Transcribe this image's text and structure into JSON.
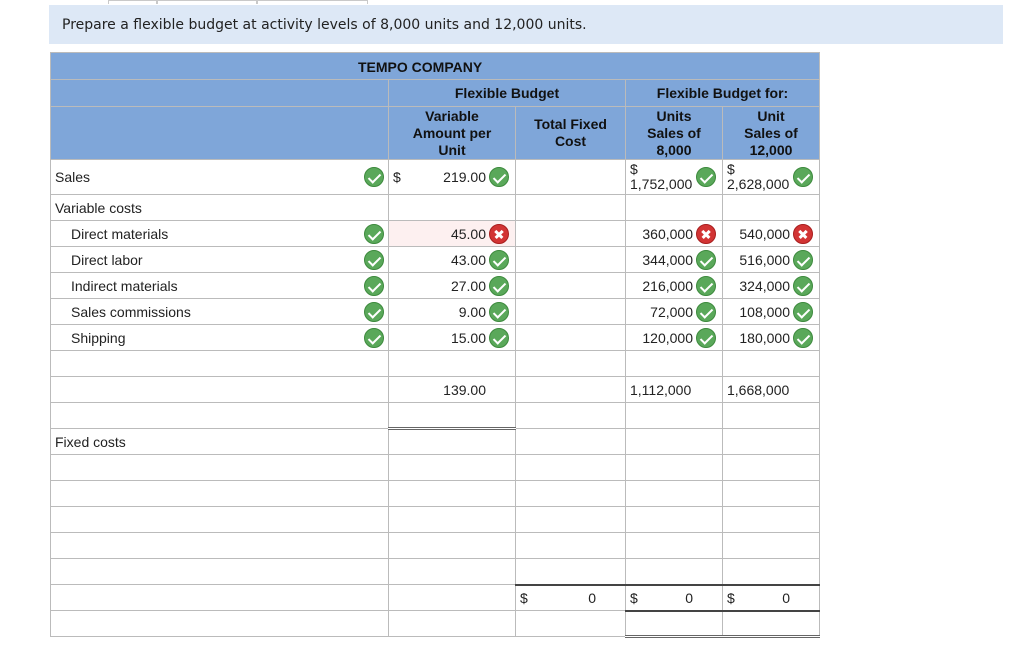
{
  "instruction": "Prepare a flexible budget at activity levels of 8,000 units and 12,000 units.",
  "company": "TEMPO COMPANY",
  "headers": {
    "flexible_budget": "Flexible Budget",
    "flexible_budget_for": "Flexible Budget for:",
    "variable_amount": [
      "Variable",
      "Amount per",
      "Unit"
    ],
    "total_fixed": [
      "Total Fixed",
      "Cost"
    ],
    "units8000": [
      "Units",
      "Sales of",
      "8,000"
    ],
    "units12000": [
      "Unit",
      "Sales of",
      "12,000"
    ]
  },
  "currency": "$",
  "sales": {
    "label": "Sales",
    "per_unit": "219.00",
    "u8000": "1,752,000",
    "u12000": "2,628,000"
  },
  "variable_costs_label": "Variable costs",
  "variable_rows": [
    {
      "label": "Direct materials",
      "per_unit": "45.00",
      "per_unit_status": "incorrect",
      "u8000": "360,000",
      "u8000_status": "incorrect",
      "u12000": "540,000",
      "u12000_status": "incorrect"
    },
    {
      "label": "Direct labor",
      "per_unit": "43.00",
      "per_unit_status": "correct",
      "u8000": "344,000",
      "u8000_status": "correct",
      "u12000": "516,000",
      "u12000_status": "correct"
    },
    {
      "label": "Indirect materials",
      "per_unit": "27.00",
      "per_unit_status": "correct",
      "u8000": "216,000",
      "u8000_status": "correct",
      "u12000": "324,000",
      "u12000_status": "correct"
    },
    {
      "label": "Sales commissions",
      "per_unit": "9.00",
      "per_unit_status": "correct",
      "u8000": "72,000",
      "u8000_status": "correct",
      "u12000": "108,000",
      "u12000_status": "correct"
    },
    {
      "label": "Shipping",
      "per_unit": "15.00",
      "per_unit_status": "correct",
      "u8000": "120,000",
      "u8000_status": "correct",
      "u12000": "180,000",
      "u12000_status": "correct"
    }
  ],
  "totals": {
    "per_unit": "139.00",
    "u8000": "1,112,000",
    "u12000": "1,668,000"
  },
  "fixed_costs_label": "Fixed costs",
  "fixed_totals": {
    "total_fixed": "0",
    "u8000": "0",
    "u12000": "0"
  },
  "colors": {
    "header_bg": "#7fa6d9",
    "instruction_bg": "#dde8f6",
    "correct": "#5aa85a",
    "incorrect": "#d23434"
  }
}
